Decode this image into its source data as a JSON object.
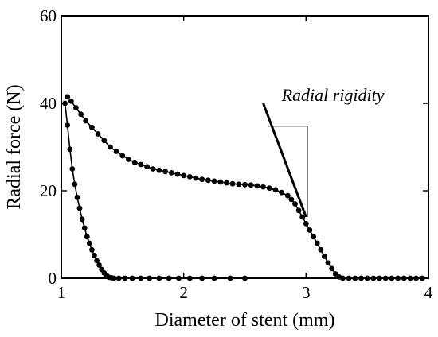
{
  "chart_data": {
    "type": "scatter",
    "xlabel": "Diameter of stent (mm)",
    "ylabel": "Radial force (N)",
    "xlim": [
      1,
      4
    ],
    "ylim": [
      0,
      60
    ],
    "xticks": [
      1,
      2,
      3,
      4
    ],
    "yticks": [
      0,
      20,
      40,
      60
    ],
    "grid": false,
    "legend": "none",
    "marker_color": "#000000",
    "series": [
      {
        "style": "line+markers",
        "x": [
          1.03,
          1.05,
          1.07,
          1.09,
          1.11,
          1.13,
          1.15,
          1.17,
          1.19,
          1.21,
          1.23,
          1.25,
          1.27,
          1.29,
          1.31,
          1.33,
          1.35,
          1.37,
          1.39,
          1.41,
          1.43,
          1.47,
          1.52,
          1.58,
          1.65,
          1.72,
          1.8,
          1.88,
          1.96,
          2.05,
          2.15,
          2.25,
          2.38,
          2.5
        ],
        "y": [
          40.0,
          35.0,
          29.5,
          25.0,
          21.5,
          18.5,
          16.0,
          13.5,
          11.5,
          9.5,
          8.0,
          6.5,
          5.2,
          4.0,
          3.0,
          2.0,
          1.2,
          0.6,
          0.2,
          0.1,
          0.0,
          0.0,
          0.0,
          0.0,
          0.0,
          0.0,
          0.0,
          0.0,
          0.0,
          0.0,
          0.0,
          0.0,
          0.0,
          0.0
        ]
      },
      {
        "style": "line+markers",
        "x": [
          1.05,
          1.08,
          1.12,
          1.16,
          1.2,
          1.25,
          1.3,
          1.35,
          1.4,
          1.45,
          1.5,
          1.55,
          1.6,
          1.65,
          1.7,
          1.75,
          1.8,
          1.85,
          1.9,
          1.95,
          2.0,
          2.05,
          2.1,
          2.15,
          2.2,
          2.25,
          2.3,
          2.35,
          2.4,
          2.45,
          2.5,
          2.55,
          2.6,
          2.65,
          2.7,
          2.75,
          2.8,
          2.85,
          2.88,
          2.91,
          2.94,
          2.97,
          3.0,
          3.03,
          3.06,
          3.09,
          3.12,
          3.15,
          3.18,
          3.21,
          3.24,
          3.27,
          3.3,
          3.35,
          3.4,
          3.45,
          3.5,
          3.55,
          3.6,
          3.65,
          3.7,
          3.75,
          3.8,
          3.85,
          3.9,
          3.95
        ],
        "y": [
          41.5,
          40.5,
          39.0,
          37.5,
          36.0,
          34.5,
          33.0,
          31.5,
          30.0,
          29.0,
          28.0,
          27.2,
          26.5,
          26.0,
          25.5,
          25.0,
          24.7,
          24.4,
          24.1,
          23.8,
          23.5,
          23.2,
          22.9,
          22.6,
          22.4,
          22.2,
          22.0,
          21.8,
          21.6,
          21.5,
          21.4,
          21.3,
          21.1,
          20.9,
          20.6,
          20.2,
          19.6,
          18.9,
          18.0,
          17.0,
          15.5,
          14.0,
          12.5,
          11.0,
          9.5,
          8.0,
          6.5,
          5.0,
          3.5,
          2.2,
          1.0,
          0.3,
          0.0,
          0.0,
          0.0,
          0.0,
          0.0,
          0.0,
          0.0,
          0.0,
          0.0,
          0.0,
          0.0,
          0.0,
          0.0,
          0.0
        ]
      }
    ],
    "annotation": {
      "label": "Radial rigidity",
      "line": {
        "x": [
          2.65,
          3.0
        ],
        "y": [
          40.0,
          14.0
        ]
      },
      "triangle": {
        "x_left": 2.69,
        "x_right": 3.01,
        "y_top": 34.8,
        "y_bottom": 14.0
      }
    }
  }
}
